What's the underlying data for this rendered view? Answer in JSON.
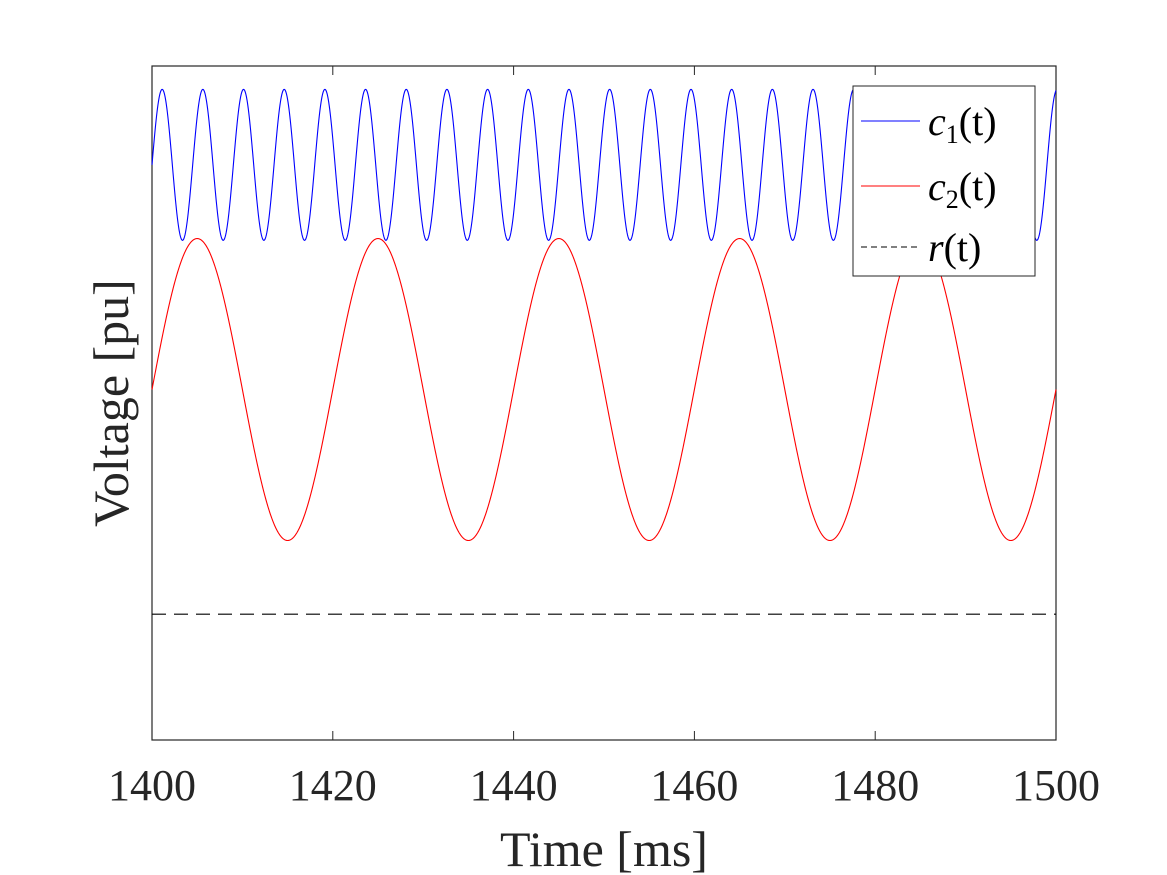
{
  "chart_data": {
    "type": "line",
    "xlabel": "Time [ms]",
    "ylabel": "Voltage [pu]",
    "xlim": [
      1400,
      1500
    ],
    "xticks": [
      "1400",
      "1420",
      "1440",
      "1460",
      "1480",
      "1500"
    ],
    "ylim": [
      -1.95,
      1.8
    ],
    "yticks_shown": false,
    "grid": false,
    "legend": "top-right",
    "series": [
      {
        "name": "c1(t)",
        "label_main": "c",
        "label_sub": "1",
        "label_tail": "(t)",
        "color": "#0000ff",
        "style": "solid",
        "waveform": "sine",
        "offset": 1.25,
        "amplitude": 0.42,
        "period_ms": 4.5,
        "phase_ms": 0.0
      },
      {
        "name": "c2(t)",
        "label_main": "c",
        "label_sub": "2",
        "label_tail": "(t)",
        "color": "#ff0000",
        "style": "solid",
        "waveform": "sine",
        "offset": 0.0,
        "amplitude": 0.84,
        "period_ms": 20,
        "phase_ms": 0.0
      },
      {
        "name": "r(t)",
        "label_main": "r",
        "label_sub": "",
        "label_tail": "(t)",
        "color": "#000000",
        "style": "dashed",
        "waveform": "constant",
        "value": -1.25
      }
    ]
  }
}
